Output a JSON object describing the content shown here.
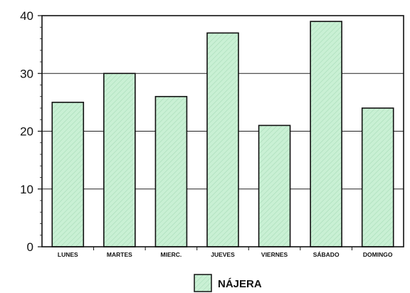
{
  "chart_data": {
    "type": "bar",
    "title": "",
    "xlabel": "",
    "ylabel": "",
    "categories": [
      "LUNES",
      "MARTES",
      "MIERC.",
      "JUEVES",
      "VIERNES",
      "SÁBADO",
      "DOMINGO"
    ],
    "series": [
      {
        "name": "NÁJERA",
        "values": [
          25,
          30,
          26,
          37,
          21,
          39,
          24
        ]
      }
    ],
    "ylim": [
      0,
      40
    ],
    "yticks": [
      "0",
      "10",
      "20",
      "30",
      "40"
    ],
    "grid": true,
    "legend_position": "bottom-center",
    "colors": {
      "bar_fill": "#c9f0d4",
      "bar_hatch": "#a8dcb8",
      "bar_stroke": "#111111",
      "grid": "#222222",
      "frame": "#111111"
    }
  }
}
